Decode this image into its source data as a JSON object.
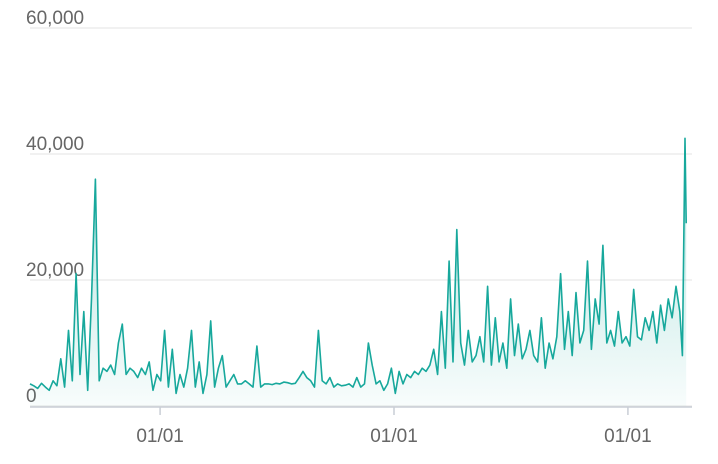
{
  "chart_data": {
    "type": "line",
    "xlim": [
      0,
      1033
    ],
    "xticks": [
      {
        "value": 203,
        "label": "01/01"
      },
      {
        "value": 568,
        "label": "01/01"
      },
      {
        "value": 933,
        "label": "01/01"
      }
    ],
    "ylim": [
      0,
      60000
    ],
    "yticks": [
      0,
      {
        "value": 20000,
        "label": "20,000"
      },
      {
        "value": 40000,
        "label": "40,000"
      },
      {
        "value": 60000,
        "label": "60,000"
      }
    ],
    "grid": true,
    "color": "#17a89c",
    "x": [
      0,
      6,
      12,
      18,
      24,
      30,
      36,
      42,
      48,
      54,
      60,
      66,
      72,
      78,
      84,
      90,
      96,
      102,
      108,
      114,
      120,
      126,
      132,
      138,
      144,
      150,
      156,
      162,
      168,
      174,
      180,
      186,
      192,
      198,
      204,
      210,
      216,
      222,
      228,
      234,
      240,
      246,
      252,
      258,
      264,
      270,
      276,
      282,
      288,
      294,
      300,
      306,
      312,
      318,
      324,
      330,
      336,
      342,
      348,
      354,
      360,
      366,
      372,
      378,
      384,
      390,
      396,
      402,
      408,
      414,
      420,
      426,
      432,
      438,
      444,
      450,
      456,
      462,
      468,
      474,
      480,
      486,
      492,
      498,
      504,
      510,
      516,
      522,
      528,
      534,
      540,
      546,
      552,
      558,
      564,
      570,
      576,
      582,
      588,
      594,
      600,
      606,
      612,
      618,
      624,
      630,
      636,
      642,
      648,
      654,
      660,
      666,
      672,
      678,
      684,
      690,
      696,
      702,
      708,
      714,
      720,
      726,
      732,
      738,
      744,
      750,
      756,
      762,
      768,
      774,
      780,
      786,
      792,
      798,
      804,
      810,
      816,
      822,
      828,
      834,
      840,
      846,
      852,
      858,
      864,
      870,
      876,
      882,
      888,
      894,
      900,
      906,
      912,
      918,
      924,
      930,
      936,
      942,
      948,
      954,
      960,
      966,
      972,
      978,
      984,
      990,
      996,
      1002,
      1008,
      1014,
      1018,
      1022,
      1024
    ],
    "values": [
      3500,
      3200,
      2800,
      3600,
      3000,
      2500,
      4000,
      3200,
      7500,
      3000,
      12000,
      4000,
      21000,
      5000,
      15000,
      2500,
      17000,
      36000,
      4000,
      6000,
      5500,
      6500,
      5000,
      10000,
      13000,
      5000,
      6000,
      5500,
      4500,
      6000,
      5000,
      7000,
      2500,
      5000,
      4000,
      12000,
      3000,
      9000,
      2000,
      5000,
      3000,
      6000,
      12000,
      3000,
      7000,
      2000,
      5000,
      13500,
      3000,
      6000,
      8000,
      3000,
      4000,
      5000,
      3500,
      3500,
      4000,
      3500,
      3000,
      9500,
      3000,
      3500,
      3500,
      3400,
      3600,
      3500,
      3800,
      3700,
      3500,
      3600,
      4500,
      5500,
      4500,
      4000,
      3000,
      12000,
      4000,
      3500,
      4500,
      3000,
      3500,
      3200,
      3300,
      3500,
      3000,
      4500,
      3000,
      3500,
      10000,
      6500,
      3500,
      4000,
      2500,
      3500,
      6000,
      2000,
      5500,
      3500,
      5000,
      4500,
      5500,
      5000,
      6000,
      5500,
      6500,
      9000,
      5000,
      15000,
      6000,
      23000,
      7000,
      28000,
      10000,
      6500,
      12000,
      7000,
      8000,
      11000,
      7000,
      19000,
      6500,
      14000,
      7000,
      10000,
      6000,
      17000,
      8000,
      13000,
      7500,
      9000,
      12000,
      8000,
      7000,
      14000,
      6000,
      10000,
      7500,
      11000,
      21000,
      9000,
      15000,
      8000,
      18000,
      10000,
      12000,
      23000,
      9000,
      17000,
      13000,
      25500,
      10000,
      12000,
      9500,
      15000,
      10000,
      11000,
      9500,
      18500,
      11000,
      10500,
      14000,
      12000,
      15000,
      10000,
      16000,
      12000,
      17000,
      14000,
      19000,
      15000,
      8000,
      42500,
      29000
    ]
  }
}
